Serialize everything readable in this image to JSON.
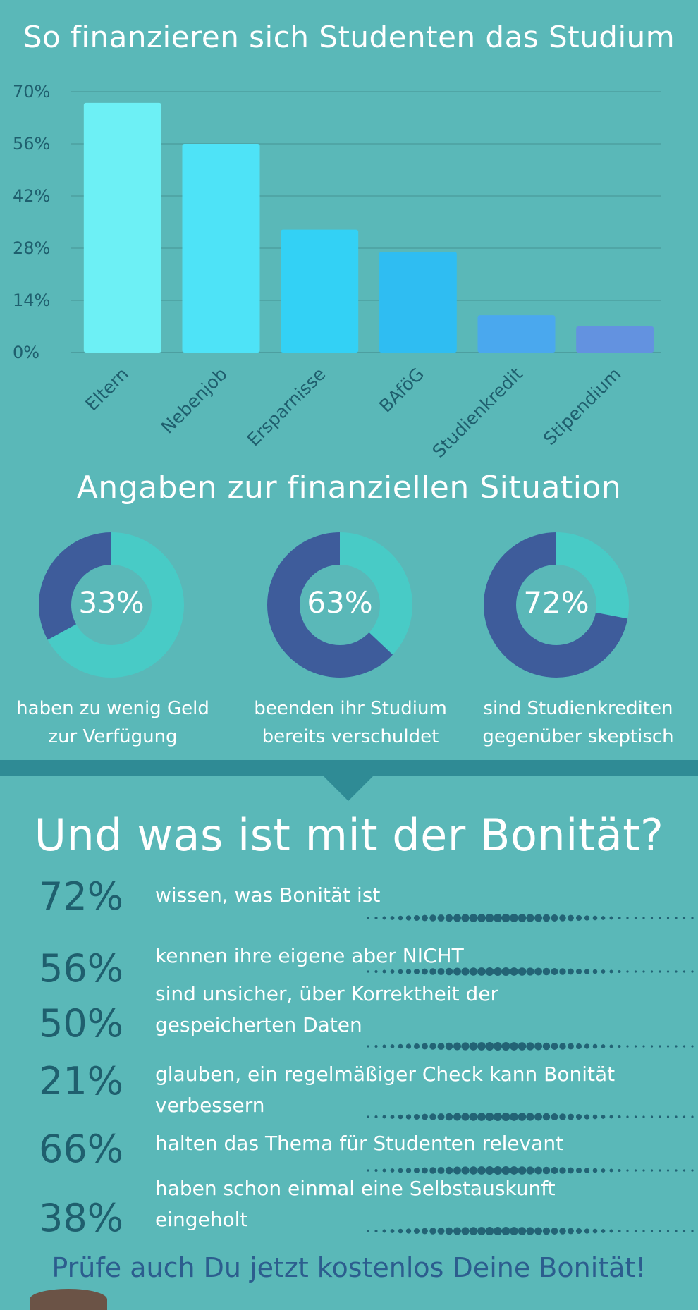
{
  "section1": {
    "title": "So finanzieren sich Studenten das Studium"
  },
  "chart_data": [
    {
      "type": "bar",
      "title": "So finanzieren sich Studenten das Studium",
      "categories": [
        "Eltern",
        "Nebenjob",
        "Ersparnisse",
        "BAföG",
        "Studienkredit",
        "Stipendium"
      ],
      "values": [
        67,
        56,
        33,
        27,
        10,
        7
      ],
      "colors": [
        "#6df0f5",
        "#4ee3f7",
        "#33d1f5",
        "#2fbdf2",
        "#4aa8ee",
        "#6392e0"
      ],
      "ylim": [
        0,
        70
      ],
      "yticks": [
        0,
        14,
        28,
        42,
        56,
        70
      ],
      "ytick_labels": [
        "0%",
        "14%",
        "28%",
        "42%",
        "56%",
        "70%"
      ],
      "grid": true
    },
    {
      "type": "pie",
      "title": "Angaben zur finanziellen Situation",
      "charts": [
        {
          "value": 33,
          "label": "33%",
          "caption": [
            "haben zu wenig Geld",
            "zur Verfügung"
          ]
        },
        {
          "value": 63,
          "label": "63%",
          "caption": [
            "beenden ihr Studium",
            "bereits verschuldet"
          ]
        },
        {
          "value": 72,
          "label": "72%",
          "caption": [
            "sind Studienkrediten",
            "gegenüber skeptisch"
          ]
        }
      ],
      "colors": {
        "part": "#3e5c9b",
        "rest": "#48cbc6"
      }
    }
  ],
  "section2": {
    "title": "Angaben zur finanziellen Situation"
  },
  "section3": {
    "title": "Und was ist mit der Bonität?",
    "stats": [
      {
        "value": "72%",
        "lines": [
          "wissen, was Bonität ist"
        ]
      },
      {
        "value": "56%",
        "lines": [
          "kennen ihre eigene aber NICHT"
        ]
      },
      {
        "value": "50%",
        "lines": [
          "sind unsicher, über Korrektheit der",
          "gespeicherten Daten"
        ]
      },
      {
        "value": "21%",
        "lines": [
          "glauben, ein regelmäßiger Check kann Bonität",
          "verbessern"
        ]
      },
      {
        "value": "66%",
        "lines": [
          "halten das Thema für Studenten relevant"
        ]
      },
      {
        "value": "38%",
        "lines": [
          "haben schon einmal eine Selbstauskunft",
          "eingeholt"
        ]
      }
    ]
  },
  "footer": {
    "text": "Prüfe auch Du jetzt kostenlos Deine Bonität!"
  },
  "colors": {
    "background": "#5ab8b8",
    "band": "#2f8b95",
    "stat_number": "#1f5f6e",
    "dots": "#1d5a6e",
    "footer": "#2c5d8e"
  }
}
